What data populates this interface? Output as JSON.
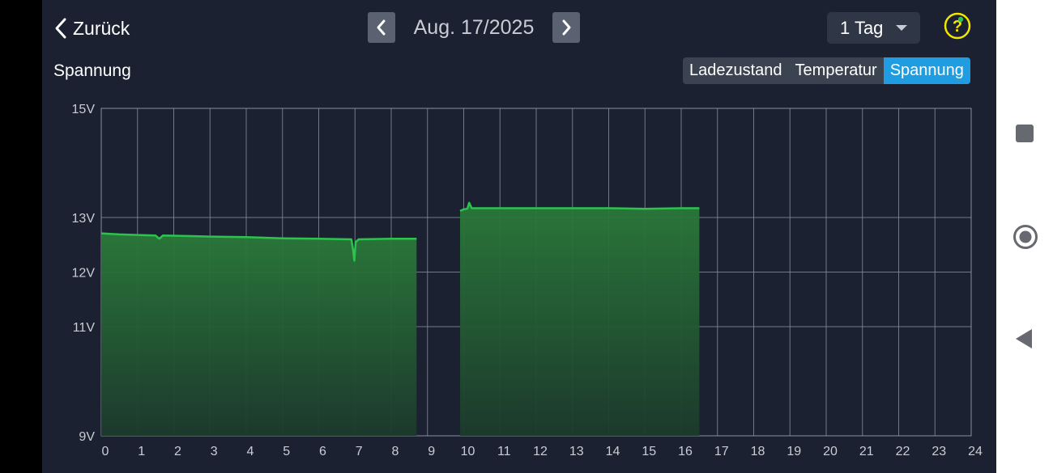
{
  "header": {
    "back_label": "Zurück",
    "date": "Aug. 17/2025",
    "range": "1 Tag",
    "help_symbol": "?"
  },
  "chart_title": "Spannung",
  "tabs": [
    {
      "label": "Ladezustand",
      "active": false
    },
    {
      "label": "Temperatur",
      "active": false
    },
    {
      "label": "Spannung",
      "active": true
    }
  ],
  "colors": {
    "background": "#1b2130",
    "line": "#2ec24f",
    "tab_active": "#1f9de0",
    "help": "#f3e600"
  },
  "chart_data": {
    "type": "area",
    "xlabel": "",
    "ylabel": "",
    "xlim": [
      0,
      24
    ],
    "ylim": [
      9,
      15
    ],
    "x_ticks": [
      "0",
      "1",
      "2",
      "3",
      "4",
      "5",
      "6",
      "7",
      "8",
      "9",
      "10",
      "11",
      "12",
      "13",
      "14",
      "15",
      "16",
      "17",
      "18",
      "19",
      "20",
      "21",
      "22",
      "23",
      "24"
    ],
    "y_ticks": [
      {
        "value": 15,
        "label": "15V"
      },
      {
        "value": 13,
        "label": "13V"
      },
      {
        "value": 12,
        "label": "12V"
      },
      {
        "value": 11,
        "label": "11V"
      },
      {
        "value": 9,
        "label": "9V"
      }
    ],
    "grid": true,
    "series": [
      {
        "segments": [
          [
            [
              0.0,
              12.71
            ],
            [
              0.5,
              12.69
            ],
            [
              1.0,
              12.68
            ],
            [
              1.5,
              12.67
            ],
            [
              1.6,
              12.61
            ],
            [
              1.7,
              12.67
            ],
            [
              2.5,
              12.66
            ],
            [
              3.0,
              12.65
            ],
            [
              4.0,
              12.64
            ],
            [
              5.0,
              12.62
            ],
            [
              6.0,
              12.61
            ],
            [
              6.9,
              12.6
            ],
            [
              6.95,
              12.4
            ],
            [
              6.98,
              12.21
            ],
            [
              7.02,
              12.55
            ],
            [
              7.1,
              12.6
            ],
            [
              8.0,
              12.61
            ],
            [
              8.7,
              12.61
            ]
          ],
          [
            [
              9.9,
              13.12
            ],
            [
              10.0,
              13.15
            ],
            [
              10.1,
              13.16
            ],
            [
              10.15,
              13.27
            ],
            [
              10.22,
              13.17
            ],
            [
              10.5,
              13.17
            ],
            [
              12.0,
              13.17
            ],
            [
              13.0,
              13.17
            ],
            [
              14.0,
              13.17
            ],
            [
              15.0,
              13.16
            ],
            [
              16.0,
              13.17
            ],
            [
              16.5,
              13.17
            ]
          ]
        ]
      }
    ]
  }
}
